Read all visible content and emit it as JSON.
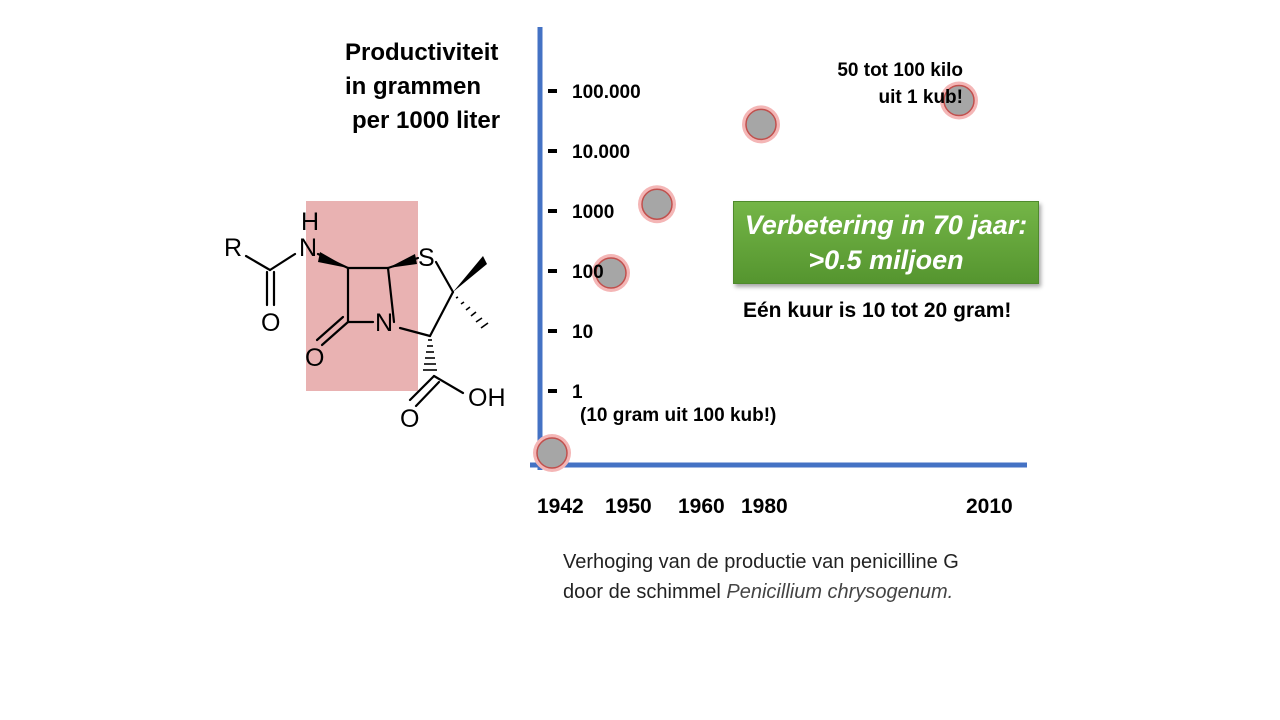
{
  "chart_data": {
    "type": "scatter",
    "ylabel_lines": [
      "Productiviteit",
      "in grammen",
      "per 1000 liter"
    ],
    "y_scale": "log",
    "y_tick_labels": [
      "100.000",
      "10.000",
      "1000",
      "100",
      "10",
      "1"
    ],
    "y_ticks": [
      100000,
      10000,
      1000,
      100,
      10,
      1
    ],
    "x_tick_labels": [
      "1942",
      "1950",
      "1960",
      "1980",
      "2010"
    ],
    "points": [
      {
        "x": "1942",
        "y": 0.1
      },
      {
        "x": "1950",
        "y": 100
      },
      {
        "x": "1960",
        "y": 1400
      },
      {
        "x": "1980",
        "y": 30000
      },
      {
        "x": "2010",
        "y": 75000
      }
    ],
    "annotations": {
      "first_point": "(10 gram uit 100 kub!)",
      "last_point_line1": "50 tot 100 kilo",
      "last_point_line2": "uit 1 kub!"
    },
    "callout": {
      "line1": "Verbetering in 70 jaar:",
      "line2": ">0.5 miljoen"
    },
    "note": "Eén kuur is 10 tot 20 gram!",
    "colors": {
      "axis": "#4472c4",
      "point_fill": "#a6a6a6",
      "point_ring": "#f4b6b6",
      "callout": "#5fa23a"
    }
  },
  "molecule": {
    "atoms": [
      "R",
      "H",
      "N",
      "O",
      "N",
      "S",
      "O",
      "OH",
      "O"
    ],
    "highlight_color": "#e9b2b2"
  },
  "caption": {
    "line1": "Verhoging van de productie van penicilline G",
    "line2_prefix": "door de schimmel ",
    "line2_species": "Penicillium chrysogenum."
  }
}
